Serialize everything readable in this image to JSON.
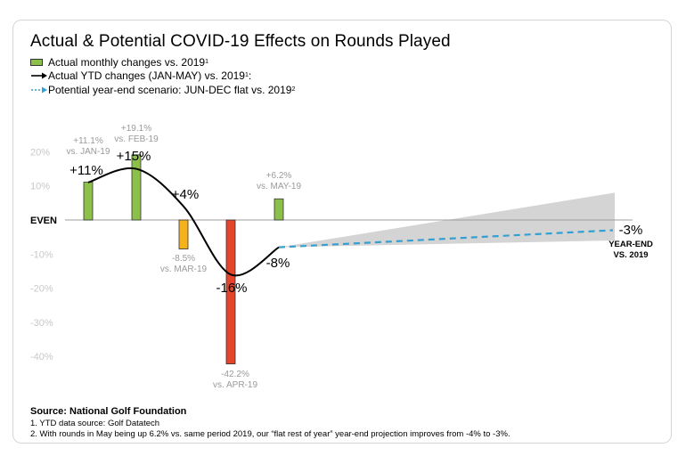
{
  "title": "Actual & Potential COVID-19 Effects on Rounds Played",
  "legend": {
    "bar_label": "Actual monthly changes vs. 2019",
    "bar_sup": "1",
    "line_label": "Actual YTD changes (JAN-MAY) vs. 2019",
    "line_sup": "1",
    "line_suffix": ":",
    "dashed_label": "Potential year-end scenario: JUN-DEC flat vs. 2019",
    "dashed_sup": "2"
  },
  "footer": {
    "source": "Source: National Golf Foundation",
    "note1": "1. YTD data source: Golf Datatech",
    "note2": "2. With rounds in May being up 6.2% vs. same period 2019, our “flat rest of year” year-end projection improves from -4% to -3%."
  },
  "chart_data": {
    "type": "bar",
    "title": "Actual & Potential COVID-19 Effects on Rounds Played",
    "y_ticks": [
      "20%",
      "10%",
      "EVEN",
      "-10%",
      "-20%",
      "-30%",
      "-40%"
    ],
    "y_tick_values": [
      20,
      10,
      0,
      -10,
      -20,
      -30,
      -40
    ],
    "ylim": [
      -45,
      25
    ],
    "grid": false,
    "colors": {
      "positive_bar": "#8dc04b",
      "mar_bar": "#f6b21b",
      "apr_bar": "#e4452b",
      "ytd_line": "#000000",
      "projection": "#2fa1d5",
      "band": "#d4d4d4",
      "muted_text": "#9a9a9a"
    },
    "monthly": [
      {
        "month": "JAN",
        "value": 11.1,
        "label1": "+11.1%",
        "label2": "vs. JAN-19",
        "color": "#8dc04b"
      },
      {
        "month": "FEB",
        "value": 19.1,
        "label1": "+19.1%",
        "label2": "vs. FEB-19",
        "color": "#8dc04b"
      },
      {
        "month": "MAR",
        "value": -8.5,
        "label1": "-8.5%",
        "label2": "vs. MAR-19",
        "color": "#f6b21b"
      },
      {
        "month": "APR",
        "value": -42.2,
        "label1": "-42.2%",
        "label2": "vs. APR-19",
        "color": "#e4452b"
      },
      {
        "month": "MAY",
        "value": 6.2,
        "label1": "+6.2%",
        "label2": "vs. MAY-19",
        "color": "#8dc04b"
      }
    ],
    "ytd": [
      {
        "month": "JAN",
        "value": 11,
        "label": "+11%"
      },
      {
        "month": "FEB",
        "value": 15,
        "label": "+15%"
      },
      {
        "month": "MAR",
        "value": 4,
        "label": "+4%"
      },
      {
        "month": "APR",
        "value": -16,
        "label": "-16%"
      },
      {
        "month": "MAY",
        "value": -8,
        "label": "-8%"
      }
    ],
    "projection": {
      "end_value": -3,
      "end_label": "-3%",
      "end_caption1": "YEAR-END",
      "end_caption2": "VS. 2019",
      "band_upper": 8,
      "band_lower": -6
    }
  }
}
